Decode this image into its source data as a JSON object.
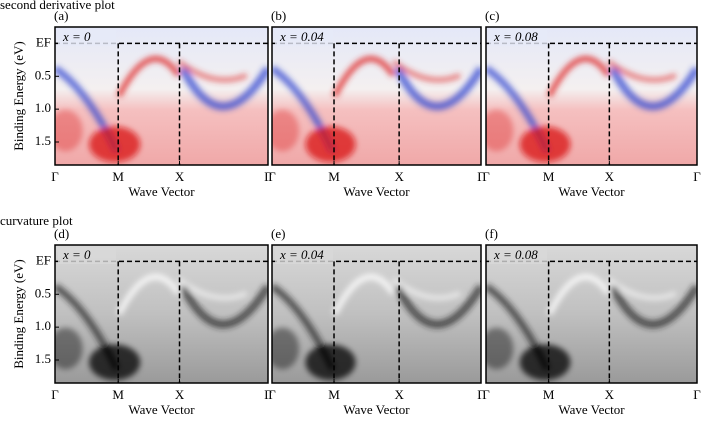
{
  "sections": [
    {
      "title": "second derivative plot"
    },
    {
      "title": "curvature plot"
    }
  ],
  "chart_data": [
    {
      "type": "heatmap",
      "colormap": "blue-white-red",
      "panel_label": "(a)",
      "title": "x = 0",
      "xlabel": "Wave Vector",
      "ylabel": "Binding Energy (eV)",
      "xlim": [
        0,
        3.37
      ],
      "xticks": [
        {
          "value": 0,
          "label": "Γ"
        },
        {
          "value": 1,
          "label": "M"
        },
        {
          "value": 1.97,
          "label": "X"
        },
        {
          "value": 3.37,
          "label": "Γ"
        }
      ],
      "ylim": [
        -0.25,
        1.85
      ],
      "yticks": [
        {
          "value": 0,
          "label": "EF"
        },
        0.5,
        {
          "value": 1.0,
          "label": "1.0"
        },
        1.5
      ],
      "hlines": [
        0
      ]
    },
    {
      "type": "heatmap",
      "colormap": "blue-white-red",
      "panel_label": "(b)",
      "title": "x = 0.04",
      "xlabel": "Wave Vector",
      "xlim": [
        0,
        3.37
      ],
      "xticks": [
        {
          "value": 0,
          "label": "Γ"
        },
        {
          "value": 1,
          "label": "M"
        },
        {
          "value": 2.05,
          "label": "X"
        },
        {
          "value": 3.37,
          "label": "Γ"
        }
      ],
      "ylim": [
        -0.25,
        1.85
      ],
      "hlines": [
        0
      ]
    },
    {
      "type": "heatmap",
      "colormap": "blue-white-red",
      "panel_label": "(c)",
      "title": "x = 0.08",
      "xlabel": "Wave Vector",
      "xlim": [
        0,
        3.37
      ],
      "xticks": [
        {
          "value": 0,
          "label": "Γ"
        },
        {
          "value": 1,
          "label": "M"
        },
        {
          "value": 1.97,
          "label": "X"
        },
        {
          "value": 3.37,
          "label": "Γ"
        }
      ],
      "ylim": [
        -0.25,
        1.85
      ],
      "hlines": [
        0
      ]
    },
    {
      "type": "heatmap",
      "colormap": "gray",
      "panel_label": "(d)",
      "title": "x = 0",
      "xlabel": "Wave Vector",
      "ylabel": "Binding Energy (eV)",
      "xlim": [
        0,
        3.37
      ],
      "xticks": [
        {
          "value": 0,
          "label": "Γ"
        },
        {
          "value": 1,
          "label": "M"
        },
        {
          "value": 1.97,
          "label": "X"
        },
        {
          "value": 3.37,
          "label": "Γ"
        }
      ],
      "ylim": [
        -0.25,
        1.85
      ],
      "yticks": [
        {
          "value": 0,
          "label": "EF"
        },
        0.5,
        {
          "value": 1.0,
          "label": "1.0"
        },
        1.5
      ],
      "hlines": [
        0
      ]
    },
    {
      "type": "heatmap",
      "colormap": "gray",
      "panel_label": "(e)",
      "title": "x = 0.04",
      "xlabel": "Wave Vector",
      "xlim": [
        0,
        3.37
      ],
      "xticks": [
        {
          "value": 0,
          "label": "Γ"
        },
        {
          "value": 1,
          "label": "M"
        },
        {
          "value": 2.05,
          "label": "X"
        },
        {
          "value": 3.37,
          "label": "Γ"
        }
      ],
      "ylim": [
        -0.25,
        1.85
      ],
      "hlines": [
        0
      ]
    },
    {
      "type": "heatmap",
      "colormap": "gray",
      "panel_label": "(f)",
      "title": "x = 0.08",
      "xlabel": "Wave Vector",
      "xlim": [
        0,
        3.37
      ],
      "xticks": [
        {
          "value": 0,
          "label": "Γ"
        },
        {
          "value": 1,
          "label": "M"
        },
        {
          "value": 1.97,
          "label": "X"
        },
        {
          "value": 3.37,
          "label": "Γ"
        }
      ],
      "ylim": [
        -0.25,
        1.85
      ],
      "hlines": [
        0
      ]
    }
  ]
}
